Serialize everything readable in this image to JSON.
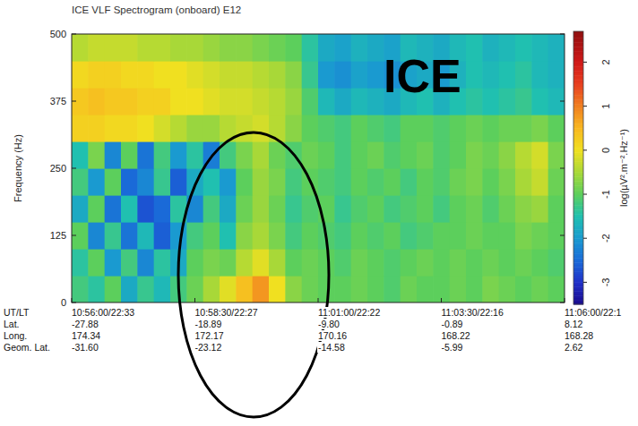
{
  "chart_data": {
    "type": "heatmap",
    "title": "ICE VLF Spectrogram (onboard) E12",
    "ylabel": "Frequency (Hz)",
    "annotation": "ICE",
    "xlim": [
      0,
      600
    ],
    "ylim": [
      0,
      500
    ],
    "xticks": [
      {
        "value": 0,
        "label": "10:56:00/22:33"
      },
      {
        "value": 150,
        "label": "10:58:30/22:27"
      },
      {
        "value": 300,
        "label": "11:01:00/22:22"
      },
      {
        "value": 450,
        "label": "11:03:30/22:16"
      },
      {
        "value": 600,
        "label": "11:06:00/22:1"
      }
    ],
    "yticks": [
      0,
      125,
      250,
      375,
      500
    ],
    "x_edges": [
      0,
      20,
      40,
      60,
      80,
      100,
      120,
      140,
      160,
      180,
      200,
      220,
      240,
      260,
      280,
      300,
      320,
      340,
      360,
      380,
      400,
      420,
      440,
      460,
      480,
      500,
      520,
      540,
      560,
      580,
      600
    ],
    "y_edges": [
      0,
      50,
      100,
      150,
      200,
      250,
      300,
      350,
      400,
      450,
      500
    ],
    "cells": [
      [
        -1.2,
        -1.4,
        -1.0,
        -1.8,
        -1.3,
        -1.6,
        -1.2,
        -0.9,
        -0.5,
        -0.1,
        0.4,
        0.8,
        0.0,
        -0.7,
        -0.9,
        -1.0,
        -1.0,
        -0.9,
        -1.0,
        -1.1,
        -0.9,
        -1.0,
        -1.0,
        -0.9,
        -1.0,
        -0.8,
        -0.9,
        -1.0,
        -0.9,
        -1.0
      ],
      [
        -1.4,
        -1.0,
        -2.0,
        -1.2,
        -2.2,
        -1.4,
        -1.8,
        -1.0,
        -0.8,
        -0.9,
        -0.4,
        -0.1,
        -0.5,
        -1.0,
        -0.9,
        -1.0,
        -1.1,
        -0.9,
        -1.0,
        -1.1,
        -1.0,
        -0.9,
        -1.0,
        -0.9,
        -1.0,
        -0.9,
        -1.0,
        -0.9,
        -1.0,
        -1.1
      ],
      [
        -1.0,
        -2.2,
        -1.3,
        -2.4,
        -1.6,
        -2.6,
        -2.0,
        -1.2,
        -1.0,
        -1.5,
        -0.7,
        -0.5,
        -0.8,
        -1.2,
        -1.0,
        -1.1,
        -1.2,
        -1.0,
        -1.1,
        -1.0,
        -1.2,
        -1.1,
        -1.0,
        -1.0,
        -0.9,
        -1.0,
        -1.0,
        -0.8,
        -0.9,
        -1.0
      ],
      [
        -1.8,
        -1.0,
        -2.4,
        -1.5,
        -2.7,
        -2.5,
        -1.4,
        -2.2,
        -1.2,
        -1.8,
        -0.9,
        -0.6,
        -0.9,
        -1.3,
        -1.1,
        -1.0,
        -1.3,
        -1.1,
        -1.0,
        -1.2,
        -1.1,
        -1.0,
        -1.2,
        -1.0,
        -0.9,
        -1.1,
        -0.9,
        -0.7,
        -0.6,
        -1.0
      ],
      [
        -1.2,
        -2.0,
        -1.0,
        -2.5,
        -2.2,
        -1.3,
        -2.6,
        -1.8,
        -1.5,
        -2.0,
        -1.0,
        -0.6,
        -0.8,
        -1.2,
        -1.0,
        -1.1,
        -1.2,
        -1.0,
        -1.1,
        -1.0,
        -1.2,
        -1.0,
        -1.1,
        -0.9,
        -0.8,
        -1.0,
        -0.8,
        -0.5,
        -0.3,
        -0.9
      ],
      [
        -1.5,
        -0.8,
        -2.2,
        -1.0,
        -2.4,
        -1.2,
        -2.0,
        -1.4,
        -2.3,
        -1.2,
        -0.8,
        -0.5,
        -0.9,
        -1.1,
        -0.9,
        -1.0,
        -1.2,
        -1.0,
        -0.9,
        -1.1,
        -1.0,
        -0.9,
        -1.1,
        -1.0,
        -0.8,
        -0.9,
        -0.7,
        -0.4,
        -0.2,
        -0.8
      ],
      [
        0.2,
        0.2,
        0.1,
        0.1,
        0.0,
        -0.2,
        -0.4,
        -0.6,
        -0.6,
        -0.4,
        -0.3,
        -0.2,
        -0.4,
        -0.7,
        -1.0,
        -1.1,
        -1.2,
        -1.0,
        -1.1,
        -1.2,
        -1.0,
        -1.0,
        -1.1,
        -1.0,
        -0.9,
        -1.0,
        -0.9,
        -0.9,
        -0.8,
        -1.0
      ],
      [
        0.3,
        0.4,
        0.3,
        0.3,
        0.2,
        0.2,
        0.0,
        0.0,
        -0.1,
        -0.2,
        -0.2,
        -0.3,
        -0.4,
        -0.6,
        -1.1,
        -1.6,
        -1.8,
        -1.6,
        -1.7,
        -1.8,
        -1.6,
        -1.5,
        -1.7,
        -1.5,
        -1.4,
        -1.5,
        -1.4,
        -1.3,
        -1.5,
        -1.6
      ],
      [
        0.1,
        0.2,
        0.2,
        0.1,
        0.1,
        0.0,
        0.0,
        -0.1,
        -0.2,
        -0.3,
        -0.3,
        -0.4,
        -0.5,
        -0.7,
        -1.3,
        -2.0,
        -2.1,
        -1.9,
        -2.0,
        -2.1,
        -1.9,
        -1.8,
        -2.0,
        -1.7,
        -1.5,
        -1.6,
        -1.5,
        -1.4,
        -1.6,
        -1.7
      ],
      [
        -0.4,
        -0.3,
        -0.3,
        -0.3,
        -0.4,
        -0.4,
        -0.5,
        -0.5,
        -0.6,
        -0.7,
        -0.7,
        -0.8,
        -0.9,
        -1.0,
        -1.4,
        -1.8,
        -1.9,
        -1.7,
        -1.8,
        -1.9,
        -1.6,
        -1.7,
        -1.8,
        -1.6,
        -1.5,
        -1.7,
        -1.6,
        -1.5,
        -1.6,
        -1.7
      ]
    ],
    "color_range": [
      -3.5,
      2.7
    ],
    "color_ticks": [
      -3,
      -2,
      -1,
      0,
      1,
      2
    ],
    "color_label": "log(µV².m⁻².Hz⁻¹)",
    "orbit": {
      "labels": [
        "UT/LT",
        "Lat.",
        "Long.",
        "Geom. Lat."
      ],
      "lat": [
        "-27.88",
        "-18.89",
        "-9.80",
        "-0.89",
        "8.12"
      ],
      "long": [
        "174.34",
        "172.17",
        "170.16",
        "168.22",
        "168.28"
      ],
      "geom_lat": [
        "-31.60",
        "-23.12",
        "-14.58",
        "-5.99",
        "2.62"
      ]
    }
  }
}
